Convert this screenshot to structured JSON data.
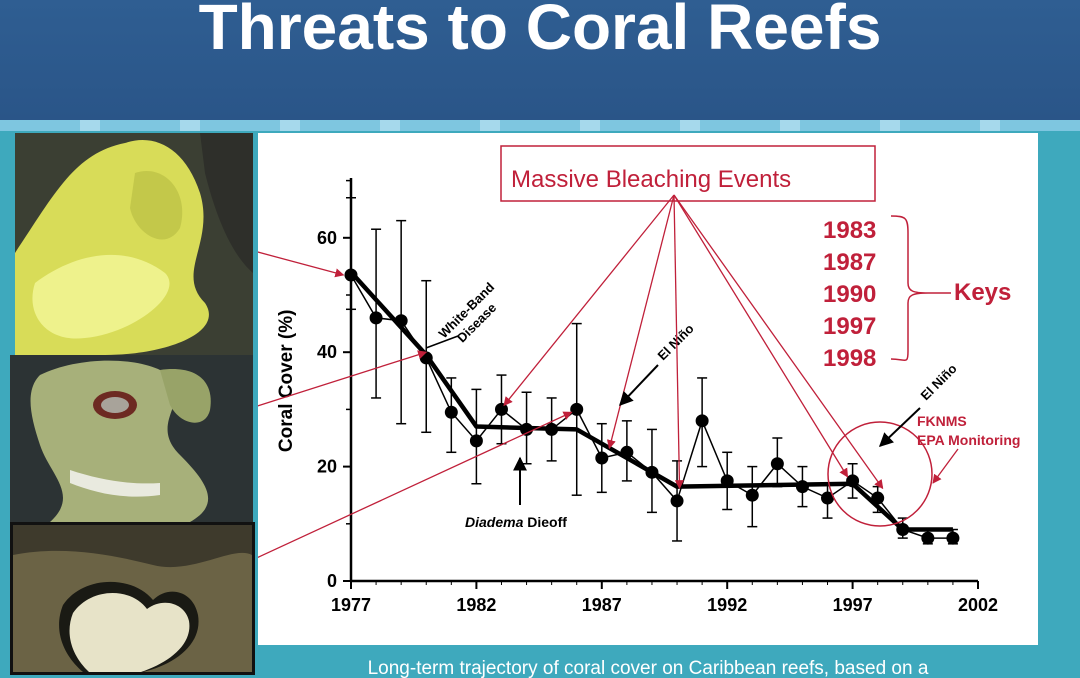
{
  "slide": {
    "title": "Threats to Coral Reefs",
    "caption": "Long-term trajectory of coral cover on Caribbean reefs, based on a"
  },
  "colors": {
    "header_bg": "#2c5a8c",
    "slide_bg": "#3ea9bd",
    "accent_red": "#c0203a",
    "data": "#000000"
  },
  "photos": [
    {
      "name": "yellow-band-coral-photo"
    },
    {
      "name": "white-band-coral-photo"
    },
    {
      "name": "bleached-coral-photo"
    }
  ],
  "chart_data": {
    "type": "line",
    "ylabel": "Coral Cover (%)",
    "xlabel": "",
    "xlim": [
      1977,
      2002
    ],
    "ylim": [
      0,
      70
    ],
    "x_ticks": [
      "1977",
      "1982",
      "1987",
      "1992",
      "1997",
      "2002"
    ],
    "y_ticks": [
      "0",
      "20",
      "40",
      "60"
    ],
    "grid": false,
    "series": [
      {
        "points": [
          {
            "x": 1977,
            "y": 53.5,
            "lo": 47.5,
            "hi": 67
          },
          {
            "x": 1978,
            "y": 46,
            "lo": 32,
            "hi": 61.5
          },
          {
            "x": 1979,
            "y": 45.5,
            "lo": 27.5,
            "hi": 63
          },
          {
            "x": 1980,
            "y": 39,
            "lo": 26,
            "hi": 52.5
          },
          {
            "x": 1981,
            "y": 29.5,
            "lo": 22.5,
            "hi": 35.5
          },
          {
            "x": 1982,
            "y": 24.5,
            "lo": 17,
            "hi": 33.5
          },
          {
            "x": 1983,
            "y": 30,
            "lo": 24,
            "hi": 36
          },
          {
            "x": 1984,
            "y": 26.5,
            "lo": 20.5,
            "hi": 33
          },
          {
            "x": 1985,
            "y": 26.5,
            "lo": 21,
            "hi": 32
          },
          {
            "x": 1986,
            "y": 30,
            "lo": 15,
            "hi": 45
          },
          {
            "x": 1987,
            "y": 21.5,
            "lo": 15.5,
            "hi": 27.5
          },
          {
            "x": 1988,
            "y": 22.5,
            "lo": 17.5,
            "hi": 28
          },
          {
            "x": 1989,
            "y": 19,
            "lo": 12,
            "hi": 26.5
          },
          {
            "x": 1990,
            "y": 14,
            "lo": 7,
            "hi": 21
          },
          {
            "x": 1991,
            "y": 28,
            "lo": 20,
            "hi": 35.5
          },
          {
            "x": 1992,
            "y": 17.5,
            "lo": 12.5,
            "hi": 22.5
          },
          {
            "x": 1993,
            "y": 15,
            "lo": 9.5,
            "hi": 20
          },
          {
            "x": 1994,
            "y": 20.5,
            "lo": 16.5,
            "hi": 25
          },
          {
            "x": 1995,
            "y": 16.5,
            "lo": 13,
            "hi": 20
          },
          {
            "x": 1996,
            "y": 14.5,
            "lo": 11,
            "hi": 17
          },
          {
            "x": 1997,
            "y": 17.5,
            "lo": 14.5,
            "hi": 20.5
          },
          {
            "x": 1998,
            "y": 14.5,
            "lo": 12,
            "hi": 16.5
          },
          {
            "x": 1999,
            "y": 9,
            "lo": 7.5,
            "hi": 11
          },
          {
            "x": 2000,
            "y": 7.5,
            "lo": 6.5,
            "hi": 9
          },
          {
            "x": 2001,
            "y": 7.5,
            "lo": 6.5,
            "hi": 9
          }
        ]
      }
    ],
    "trend": [
      {
        "x": 1977,
        "y": 54
      },
      {
        "x": 1980,
        "y": 39.5
      },
      {
        "x": 1982,
        "y": 27
      },
      {
        "x": 1986,
        "y": 26.5
      },
      {
        "x": 1987,
        "y": 24
      },
      {
        "x": 1990,
        "y": 16.5
      },
      {
        "x": 1997,
        "y": 17
      },
      {
        "x": 1999,
        "y": 9
      },
      {
        "x": 2001,
        "y": 9
      }
    ],
    "annotations": {
      "bleaching_label": "Massive  Bleaching Events",
      "bleaching_years": [
        "1983",
        "1987",
        "1990",
        "1997",
        "1998"
      ],
      "keys_label": "Keys",
      "white_band_line1": "White-Band",
      "white_band_line2": "Disease",
      "el_nino_1": "El Niño",
      "el_nino_2": "El Niño",
      "diadema_italic": "Diadema",
      "diadema_rest": " Dieoff",
      "fknms_line1": "FKNMS",
      "fknms_line2": "EPA Monitoring"
    }
  }
}
